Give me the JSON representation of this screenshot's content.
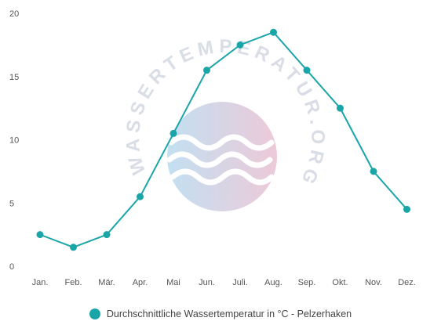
{
  "chart_data": {
    "type": "line",
    "categories": [
      "Jan.",
      "Feb.",
      "Mär.",
      "Apr.",
      "Mai",
      "Jun.",
      "Juli.",
      "Aug.",
      "Sep.",
      "Okt.",
      "Nov.",
      "Dez."
    ],
    "series": [
      {
        "name": "Durchschnittliche Wassertemperatur in °C - Pelzerhaken",
        "values": [
          2.5,
          1.5,
          2.5,
          5.5,
          10.5,
          15.5,
          17.5,
          18.5,
          15.5,
          12.5,
          7.5,
          4.5
        ]
      }
    ],
    "yticks": [
      "20",
      "15",
      "10",
      "5",
      "0"
    ],
    "ylim": [
      0,
      20
    ],
    "grid": false,
    "legend_position": "bottom",
    "color": "#1aa5a8"
  },
  "watermark": {
    "text": "WASSERTEMPERATUR.ORG"
  }
}
